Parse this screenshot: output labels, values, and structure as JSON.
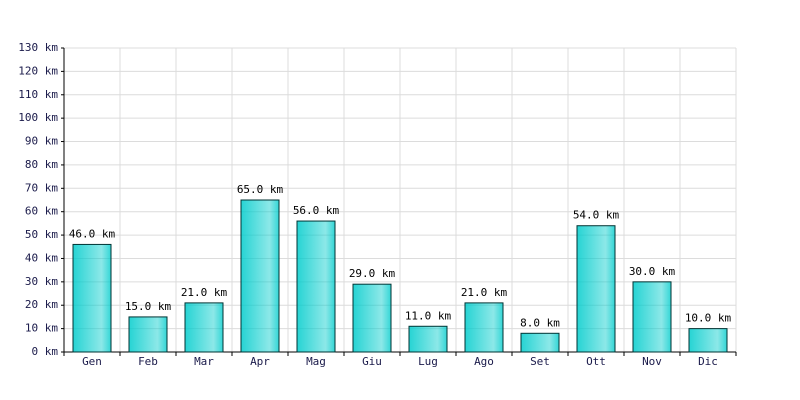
{
  "chart_data": {
    "type": "bar",
    "categories": [
      "Gen",
      "Feb",
      "Mar",
      "Apr",
      "Mag",
      "Giu",
      "Lug",
      "Ago",
      "Set",
      "Ott",
      "Nov",
      "Dic"
    ],
    "values": [
      46,
      15,
      21,
      65,
      56,
      29,
      11,
      21,
      8,
      54,
      30,
      10
    ],
    "value_labels": [
      "46.0 km",
      "15.0 km",
      "21.0 km",
      "65.0 km",
      "56.0 km",
      "29.0 km",
      "11.0 km",
      "21.0 km",
      "8.0 km",
      "54.0 km",
      "30.0 km",
      "10.0 km"
    ],
    "color": "#00cccc",
    "ylim": [
      0,
      130
    ],
    "yticks": [
      {
        "value": 0,
        "label": "0 km"
      },
      {
        "value": 10,
        "label": "10 km"
      },
      {
        "value": 20,
        "label": "20 km"
      },
      {
        "value": 30,
        "label": "30 km"
      },
      {
        "value": 40,
        "label": "40 km"
      },
      {
        "value": 50,
        "label": "50 km"
      },
      {
        "value": 60,
        "label": "60 km"
      },
      {
        "value": 70,
        "label": "70 km"
      },
      {
        "value": 80,
        "label": "80 km"
      },
      {
        "value": 90,
        "label": "90 km"
      },
      {
        "value": 100,
        "label": "100 km"
      },
      {
        "value": 110,
        "label": "110 km"
      },
      {
        "value": 120,
        "label": "120 km"
      },
      {
        "value": 130,
        "label": "130 km"
      }
    ],
    "grid": true
  }
}
